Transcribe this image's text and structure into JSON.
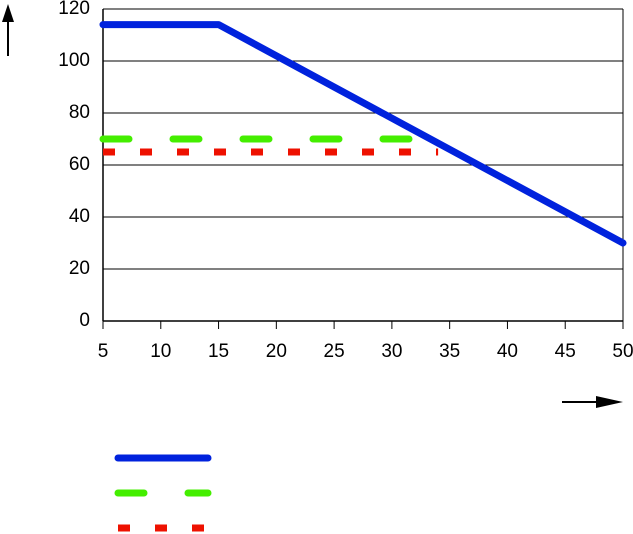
{
  "chart_data": {
    "type": "line",
    "series": [
      {
        "color": "#0022dd",
        "style": "solid",
        "x": [
          5,
          15,
          50
        ],
        "values": [
          114,
          114,
          30
        ]
      },
      {
        "color": "#44ee00",
        "style": "dashed",
        "x": [
          5,
          33
        ],
        "values": [
          70,
          70
        ]
      },
      {
        "color": "#ee1100",
        "style": "dotted",
        "x": [
          5,
          34
        ],
        "values": [
          65,
          65
        ]
      }
    ],
    "xlim": [
      5,
      50
    ],
    "xticks": [
      5,
      10,
      15,
      20,
      25,
      30,
      35,
      40,
      45,
      50
    ],
    "ylim": [
      0,
      120
    ],
    "yticks": [
      0,
      20,
      40,
      60,
      80,
      100,
      120
    ],
    "grid": true
  }
}
